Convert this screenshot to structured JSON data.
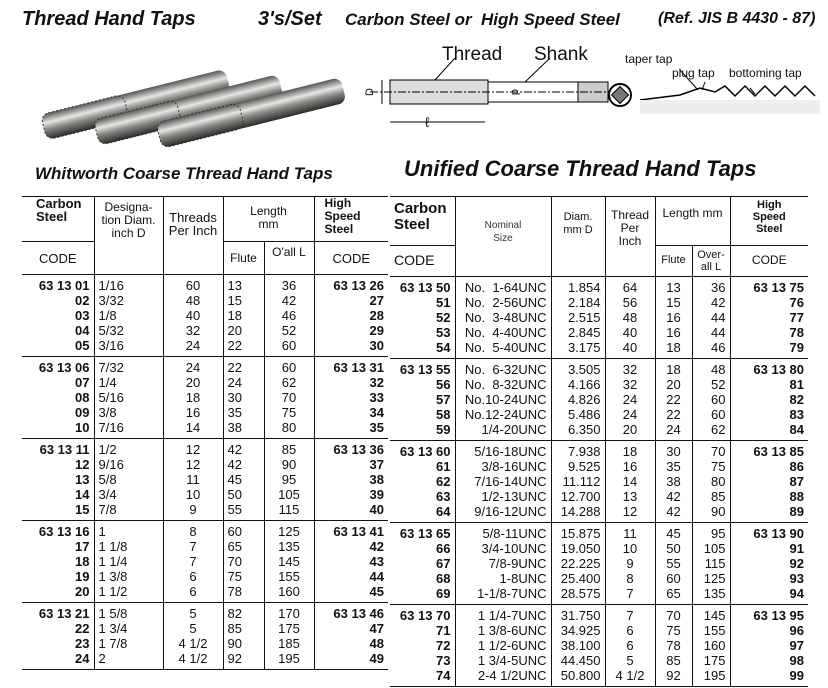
{
  "header": {
    "title": "Thread Hand Taps",
    "set": "3's/Set",
    "material": "Carbon Steel or  High Speed Steel",
    "reference": "(Ref. JIS B 4430 - 87)"
  },
  "diagram": {
    "thread": "Thread",
    "shank": "Shank",
    "D": "D",
    "d": "d",
    "l": "ℓ",
    "taper": "taper tap",
    "plug": "plug tap",
    "bottoming": "bottoming tap"
  },
  "whitworth": {
    "title": "Whitworth Coarse Thread Hand Taps",
    "headers": {
      "carbon": "Carbon Steel",
      "code": "CODE",
      "designation": "Designa-tion Diam. inch D",
      "threads": "Threads Per Inch",
      "length": "Length mm",
      "flute": "Flute",
      "overall": "O'all L",
      "hss": "High Speed Steel",
      "hss_code": "CODE"
    },
    "groups": [
      {
        "carbon": [
          "63 13 01",
          "02",
          "03",
          "04",
          "05"
        ],
        "diam": [
          "1/16",
          "3/32",
          "1/8",
          "5/32",
          "3/16"
        ],
        "tpi": [
          "60",
          "48",
          "40",
          "32",
          "24"
        ],
        "flute": [
          "13",
          "15",
          "18",
          "20",
          "22"
        ],
        "overall": [
          "36",
          "42",
          "46",
          "52",
          "60"
        ],
        "hss": [
          "63 13 26",
          "27",
          "28",
          "29",
          "30"
        ]
      },
      {
        "carbon": [
          "63 13 06",
          "07",
          "08",
          "09",
          "10"
        ],
        "diam": [
          "7/32",
          "1/4",
          "5/16",
          "3/8",
          "7/16"
        ],
        "tpi": [
          "24",
          "20",
          "18",
          "16",
          "14"
        ],
        "flute": [
          "22",
          "24",
          "30",
          "35",
          "38"
        ],
        "overall": [
          "60",
          "62",
          "70",
          "75",
          "80"
        ],
        "hss": [
          "63 13 31",
          "32",
          "33",
          "34",
          "35"
        ]
      },
      {
        "carbon": [
          "63 13 11",
          "12",
          "13",
          "14",
          "15"
        ],
        "diam": [
          "1/2",
          "9/16",
          "5/8",
          "3/4",
          "7/8"
        ],
        "tpi": [
          "12",
          "12",
          "11",
          "10",
          "9"
        ],
        "flute": [
          "42",
          "42",
          "45",
          "50",
          "55"
        ],
        "overall": [
          "85",
          "90",
          "95",
          "105",
          "115"
        ],
        "hss": [
          "63 13 36",
          "37",
          "38",
          "39",
          "40"
        ]
      },
      {
        "carbon": [
          "63 13 16",
          "17",
          "18",
          "19",
          "20"
        ],
        "diam": [
          "1",
          "1 1/8",
          "1 1/4",
          "1 3/8",
          "1 1/2"
        ],
        "tpi": [
          "8",
          "7",
          "7",
          "6",
          "6"
        ],
        "flute": [
          "60",
          "65",
          "70",
          "75",
          "78"
        ],
        "overall": [
          "125",
          "135",
          "145",
          "155",
          "160"
        ],
        "hss": [
          "63 13 41",
          "42",
          "43",
          "44",
          "45"
        ]
      },
      {
        "carbon": [
          "63 13 21",
          "22",
          "23",
          "24"
        ],
        "diam": [
          "1 5/8",
          "1 3/4",
          "1 7/8",
          "2"
        ],
        "tpi": [
          "5",
          "5",
          "4 1/2",
          "4 1/2"
        ],
        "flute": [
          "82",
          "85",
          "90",
          "92"
        ],
        "overall": [
          "170",
          "175",
          "185",
          "195"
        ],
        "hss": [
          "63 13 46",
          "47",
          "48",
          "49"
        ]
      }
    ]
  },
  "unified": {
    "title": "Unified Coarse Thread Hand Taps",
    "headers": {
      "carbon": "Carbon Steel",
      "code": "CODE",
      "nominal": "Nominal Size",
      "diam": "Diam. mm D",
      "threads": "Thread Per Inch",
      "length": "Length mm",
      "flute": "Flute",
      "overall": "Over-all L",
      "hss": "High Speed Steel",
      "hss_code": "CODE"
    },
    "groups": [
      {
        "carbon": [
          "63 13 50",
          "51",
          "52",
          "53",
          "54"
        ],
        "size": [
          "No.  1-64UNC",
          "No.  2-56UNC",
          "No.  3-48UNC",
          "No.  4-40UNC",
          "No.  5-40UNC"
        ],
        "diam": [
          "1.854",
          "2.184",
          "2.515",
          "2.845",
          "3.175"
        ],
        "tpi": [
          "64",
          "56",
          "48",
          "40",
          "40"
        ],
        "flute": [
          "13",
          "15",
          "16",
          "16",
          "18"
        ],
        "overall": [
          "36",
          "42",
          "44",
          "44",
          "46"
        ],
        "hss": [
          "63 13 75",
          "76",
          "77",
          "78",
          "79"
        ]
      },
      {
        "carbon": [
          "63 13 55",
          "56",
          "57",
          "58",
          "59"
        ],
        "size": [
          "No.  6-32UNC",
          "No.  8-32UNC",
          "No.10-24UNC",
          "No.12-24UNC",
          "1/4-20UNC"
        ],
        "diam": [
          "3.505",
          "4.166",
          "4.826",
          "5.486",
          "6.350"
        ],
        "tpi": [
          "32",
          "32",
          "24",
          "24",
          "20"
        ],
        "flute": [
          "18",
          "20",
          "22",
          "22",
          "24"
        ],
        "overall": [
          "48",
          "52",
          "60",
          "60",
          "62"
        ],
        "hss": [
          "63 13 80",
          "81",
          "82",
          "83",
          "84"
        ]
      },
      {
        "carbon": [
          "63 13 60",
          "61",
          "62",
          "63",
          "64"
        ],
        "size": [
          "5/16-18UNC",
          "3/8-16UNC",
          "7/16-14UNC",
          "1/2-13UNC",
          "9/16-12UNC"
        ],
        "diam": [
          "7.938",
          "9.525",
          "11.112",
          "12.700",
          "14.288"
        ],
        "tpi": [
          "18",
          "16",
          "14",
          "13",
          "12"
        ],
        "flute": [
          "30",
          "35",
          "38",
          "42",
          "42"
        ],
        "overall": [
          "70",
          "75",
          "80",
          "85",
          "90"
        ],
        "hss": [
          "63 13 85",
          "86",
          "87",
          "88",
          "89"
        ]
      },
      {
        "carbon": [
          "63 13 65",
          "66",
          "67",
          "68",
          "69"
        ],
        "size": [
          "5/8-11UNC",
          "3/4-10UNC",
          "7/8-9UNC",
          "1-8UNC",
          "1-1/8-7UNC"
        ],
        "diam": [
          "15.875",
          "19.050",
          "22.225",
          "25.400",
          "28.575"
        ],
        "tpi": [
          "11",
          "10",
          "9",
          "8",
          "7"
        ],
        "flute": [
          "45",
          "50",
          "55",
          "60",
          "65"
        ],
        "overall": [
          "95",
          "105",
          "115",
          "125",
          "135"
        ],
        "hss": [
          "63 13 90",
          "91",
          "92",
          "93",
          "94"
        ]
      },
      {
        "carbon": [
          "63 13 70",
          "71",
          "72",
          "73",
          "74"
        ],
        "size": [
          "1 1/4-7UNC",
          "1 3/8-6UNC",
          "1 1/2-6UNC",
          "1 3/4-5UNC",
          "2-4 1/2UNC"
        ],
        "diam": [
          "31.750",
          "34.925",
          "38.100",
          "44.450",
          "50.800"
        ],
        "tpi": [
          "7",
          "6",
          "6",
          "5",
          "4 1/2"
        ],
        "flute": [
          "70",
          "75",
          "78",
          "85",
          "92"
        ],
        "overall": [
          "145",
          "155",
          "160",
          "175",
          "195"
        ],
        "hss": [
          "63 13 95",
          "96",
          "97",
          "98",
          "99"
        ]
      }
    ]
  }
}
